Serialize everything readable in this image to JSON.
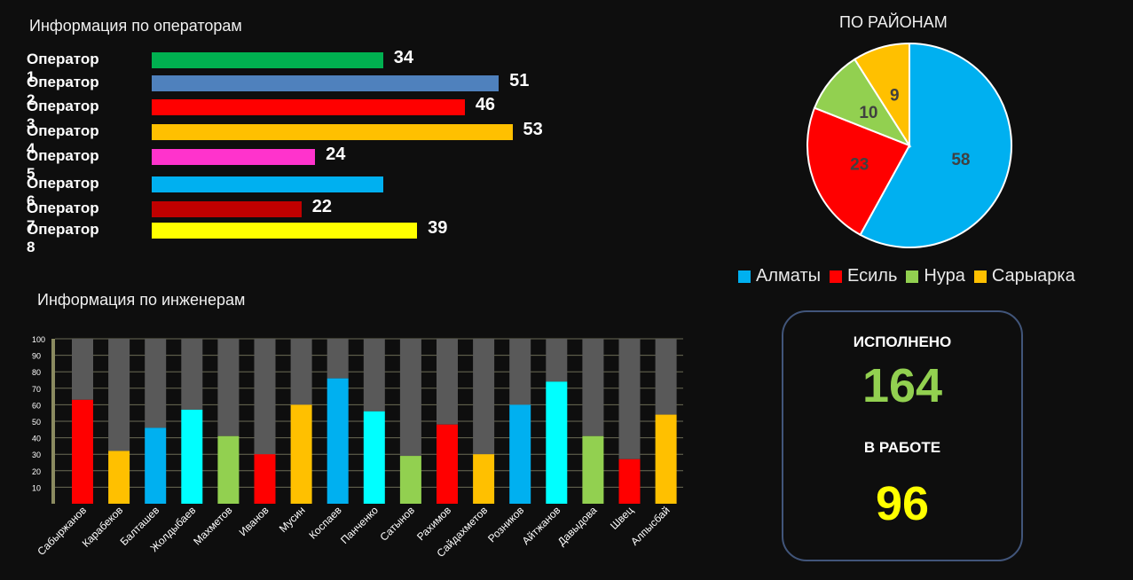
{
  "operators_section": {
    "title": "Информация по операторам"
  },
  "districts_section": {
    "title": "ПО РАЙОНАМ"
  },
  "engineers_section": {
    "title": "Информация по инженерам"
  },
  "summary": {
    "done_label": "ИСПОЛНЕНО",
    "done_value": "164",
    "done_color": "#92d050",
    "in_work_label": "В РАБОТЕ",
    "in_work_value": "96",
    "in_work_color": "#ffff00"
  },
  "chart_data": [
    {
      "type": "bar",
      "orientation": "horizontal",
      "categories": [
        "Оператор 1",
        "Оператор 2",
        "Оператор 3",
        "Оператор 4",
        "Оператор 5",
        "Оператор 6",
        "Оператор 7",
        "Оператор 8"
      ],
      "values": [
        34,
        51,
        46,
        53,
        24,
        null,
        22,
        39
      ],
      "value_labels": [
        "34",
        "51",
        "46",
        "53",
        "24",
        "",
        "22",
        "39"
      ],
      "colors": [
        "#00b050",
        "#4f81bd",
        "#ff0000",
        "#ffc000",
        "#ff33cc",
        "#00b0f0",
        "#c00000",
        "#ffff00"
      ]
    },
    {
      "type": "pie",
      "labels": [
        "Алматы",
        "Есиль",
        "Нура",
        "Сарыарка"
      ],
      "values": [
        58,
        23,
        10,
        9
      ],
      "value_labels": [
        "58",
        "23",
        "10",
        "9"
      ],
      "colors": [
        "#00b0f0",
        "#ff0000",
        "#92d050",
        "#ffc000"
      ],
      "legend": "bottom"
    },
    {
      "type": "bar",
      "stacked": true,
      "categories": [
        "Сабыржанов",
        "Карабеков",
        "Балташев",
        "Жолдыбаев",
        "Махметов",
        "Иванов",
        "Мусин",
        "Коспаев",
        "Панченко",
        "Сатынов",
        "Рахимов",
        "Сайдахметов",
        "Розников",
        "Айтжанов",
        "Давыдова",
        "Швец",
        "Алпысбай"
      ],
      "values": [
        63,
        32,
        46,
        57,
        41,
        30,
        60,
        76,
        56,
        29,
        48,
        30,
        60,
        74,
        41,
        27,
        54
      ],
      "total": 100,
      "colors": [
        "#ff0000",
        "#ffc000",
        "#00b0f0",
        "#00ffff",
        "#92d050",
        "#ff0000",
        "#ffc000",
        "#00b0f0",
        "#00ffff",
        "#92d050",
        "#ff0000",
        "#ffc000",
        "#00b0f0",
        "#00ffff",
        "#92d050",
        "#ff0000",
        "#ffc000"
      ],
      "remainder_color": "#595959",
      "yticks": [
        "10",
        "20",
        "30",
        "40",
        "50",
        "60",
        "70",
        "80",
        "90",
        "100"
      ],
      "ylim": [
        0,
        100
      ],
      "grid": true
    }
  ]
}
